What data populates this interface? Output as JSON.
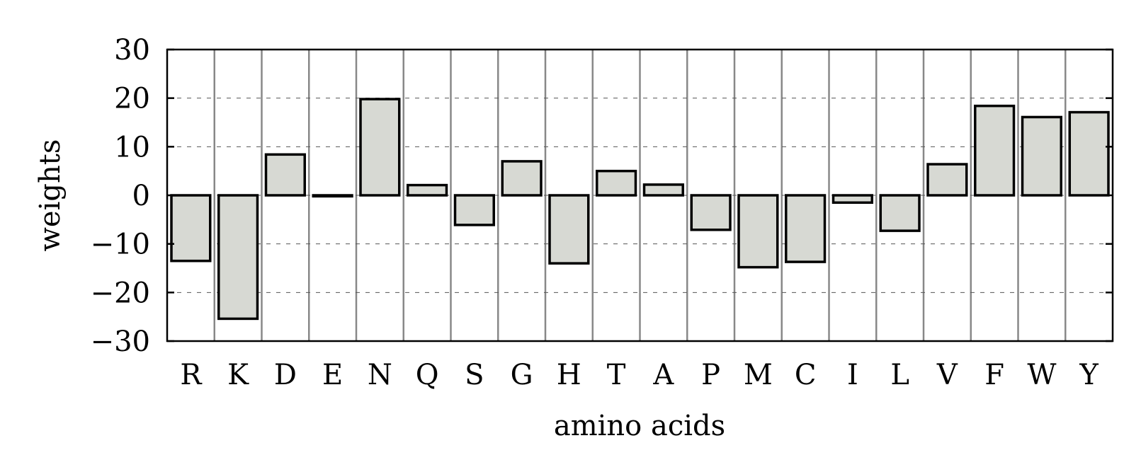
{
  "chart_data": {
    "type": "bar",
    "title": "",
    "xlabel": "amino acids",
    "ylabel": "weights",
    "ylim": [
      -30,
      30
    ],
    "yticks": [
      30,
      20,
      10,
      0,
      -10,
      -20,
      -30
    ],
    "ytick_labels": [
      "30",
      "20",
      "10",
      "0",
      "−10",
      "−20",
      "−30"
    ],
    "grid": "horizontal dashed lines with solid vertical separators between categories",
    "categories": [
      "R",
      "K",
      "D",
      "E",
      "N",
      "Q",
      "S",
      "G",
      "H",
      "T",
      "A",
      "P",
      "M",
      "C",
      "I",
      "L",
      "V",
      "F",
      "W",
      "Y"
    ],
    "values": [
      -13.5,
      -25.4,
      8.4,
      -0.2,
      19.8,
      2.1,
      -6.1,
      7.0,
      -14.0,
      5.0,
      2.2,
      -7.1,
      -14.8,
      -13.7,
      -1.5,
      -7.3,
      6.4,
      18.4,
      16.1,
      17.1
    ],
    "colors": {
      "bar_fill": "#d7d9d3",
      "bar_stroke": "#000000",
      "separator": "#888888",
      "grid": "#555555"
    }
  }
}
